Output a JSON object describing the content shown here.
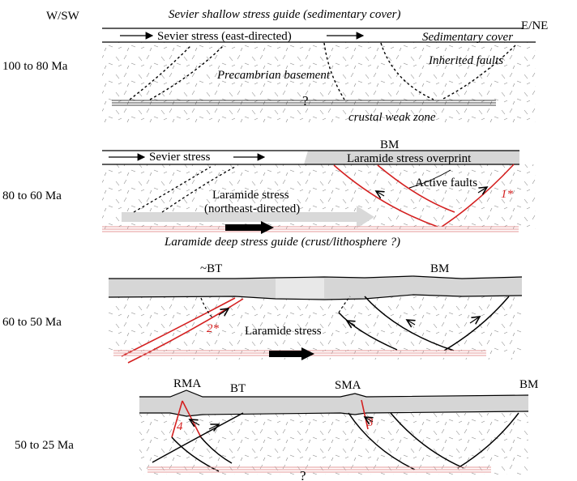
{
  "orientation": {
    "left": "W/SW",
    "right": "E/NE"
  },
  "header": {
    "sevier_guide": "Sevier shallow stress guide (sedimentary cover)",
    "sedimentary_cover": "Sedimentary cover"
  },
  "panels": [
    {
      "age": "100 to 80 Ma",
      "labels": {
        "stress": "Sevier stress (east-directed)",
        "inherited_faults": "Inherited faults",
        "basement": "Precambrian basement",
        "question": "?",
        "weak_zone": "crustal weak zone"
      }
    },
    {
      "age": "80 to 60 Ma",
      "labels": {
        "bm": "BM",
        "sevier": "Sevier stress",
        "overprint": "Laramide stress overprint",
        "active_faults": "Active faults",
        "laramide_1": "Laramide stress",
        "laramide_2": "(northeast-directed)",
        "marker": "1*",
        "deep_guide": "Laramide deep stress guide (crust/lithosphere ?)"
      }
    },
    {
      "age": "60 to 50 Ma",
      "labels": {
        "bt": "~BT",
        "bm": "BM",
        "marker": "2*",
        "laramide": "Laramide stress"
      }
    },
    {
      "age": "50 to 25 Ma",
      "labels": {
        "rma": "RMA",
        "bt": "BT",
        "sma": "SMA",
        "bm": "BM",
        "marker_a": "4",
        "marker_b": "3",
        "question": "?"
      }
    }
  ],
  "colors": {
    "line": "#000000",
    "fault_red": "#d42020",
    "cover_gray": "#d6d6d6",
    "arrow_gray": "#cfcfcf",
    "hatch": "#8a8a8a"
  }
}
